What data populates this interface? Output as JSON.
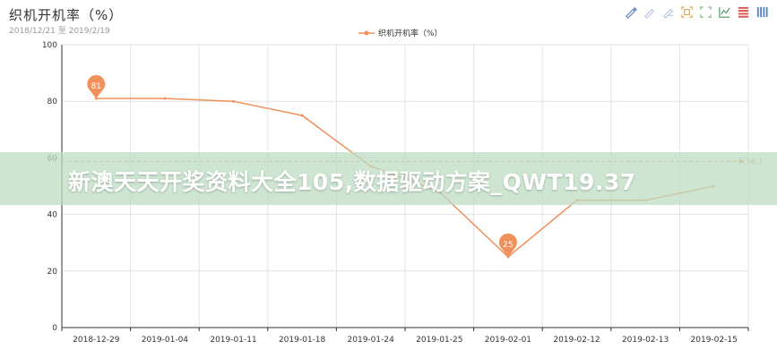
{
  "title": "织机开机率（%）",
  "subtitle": "2018/12/21 至 2019/2/19",
  "legend_label": "织机开机率（%）",
  "watermark": "新澳天天开奖资料大全105,数据驱动方案_QWT19.37",
  "toolbox": [
    "mark-icon",
    "mark-undo-icon",
    "mark-clear-icon",
    "zoom-icon",
    "zoom-reset-icon",
    "line-chart-icon",
    "bar-chart-icon",
    "stack-icon"
  ],
  "chart_data": {
    "type": "line",
    "categories": [
      "2018-12-29",
      "2019-01-04",
      "2019-01-11",
      "2019-01-18",
      "2019-01-24",
      "2019-01-25",
      "2019-02-01",
      "2019-02-12",
      "2019-02-13",
      "2019-02-15"
    ],
    "series": [
      {
        "name": "织机开机率（%）",
        "color": "#f0905a",
        "values": [
          81,
          81,
          80,
          75,
          57,
          48,
          25,
          45,
          45,
          50
        ]
      }
    ],
    "ylim": [
      0,
      100
    ],
    "yticks": [
      0,
      20,
      40,
      60,
      80,
      100
    ],
    "markpoints": [
      {
        "label": "81",
        "category_index": 0,
        "value": 81
      },
      {
        "label": "25",
        "category_index": 6,
        "value": 25
      }
    ],
    "markline": {
      "label": "58.7",
      "value": 58.7
    },
    "grid": true
  }
}
